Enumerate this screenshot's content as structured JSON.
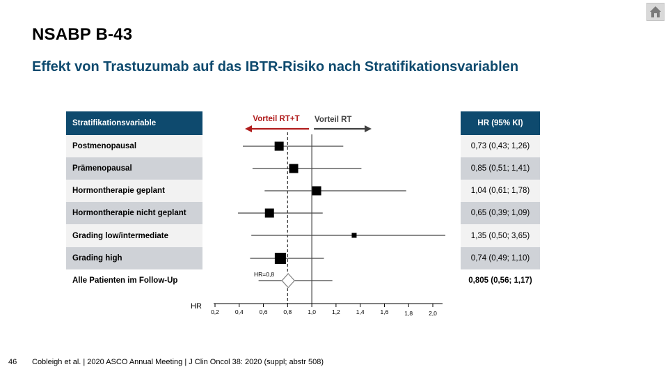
{
  "header": {
    "title": "NSABP B-43",
    "subtitle": "Effekt von Trastuzumab auf das IBTR-Risiko nach Stratifikationsvariablen"
  },
  "table": {
    "left_header": "Stratifikationsvariable",
    "right_header": "HR (95% KI)",
    "rows": [
      {
        "label": "Postmenopausal",
        "hr_text": "0,73 (0,43; 1,26)"
      },
      {
        "label": "Prämenopausal",
        "hr_text": "0,85 (0,51; 1,41)"
      },
      {
        "label": "Hormontherapie geplant",
        "hr_text": "1,04 (0,61; 1,78)"
      },
      {
        "label": "Hormontherapie nicht geplant",
        "hr_text": "0,65 (0,39; 1,09)"
      },
      {
        "label": "Grading low/intermediate",
        "hr_text": "1,35 (0,50; 3,65)"
      },
      {
        "label": "Grading high",
        "hr_text": "0,74 (0,49; 1,10)"
      },
      {
        "label": "Alle Patienten im Follow-Up",
        "hr_text": "0,805 (0,56; 1,17)"
      }
    ]
  },
  "chart_data": {
    "type": "forest",
    "xlabel": "HR",
    "ticks": [
      "0,2",
      "0,4",
      "0,6",
      "0,8",
      "1,0",
      "1,2",
      "1,4",
      "1,6",
      "1,8",
      "2,0"
    ],
    "xlim": [
      0.2,
      2.0
    ],
    "reference_line": 1.0,
    "overall_line": 0.8,
    "overall_label": "HR=0,8",
    "arrow_left_label": "Vorteil RT+T",
    "arrow_right_label": "Vorteil RT",
    "colors": {
      "left_arrow": "#b01c1c",
      "right_arrow": "#404040",
      "marker": "#000000"
    },
    "estimates": [
      {
        "hr": 0.73,
        "lo": 0.43,
        "hi": 1.26,
        "weight": "large"
      },
      {
        "hr": 0.85,
        "lo": 0.51,
        "hi": 1.41,
        "weight": "large"
      },
      {
        "hr": 1.04,
        "lo": 0.61,
        "hi": 1.78,
        "weight": "large"
      },
      {
        "hr": 0.65,
        "lo": 0.39,
        "hi": 1.09,
        "weight": "large"
      },
      {
        "hr": 1.35,
        "lo": 0.5,
        "hi": 3.65,
        "weight": "small"
      },
      {
        "hr": 0.74,
        "lo": 0.49,
        "hi": 1.1,
        "weight": "large"
      },
      {
        "hr": 0.805,
        "lo": 0.56,
        "hi": 1.17,
        "weight": "overall"
      }
    ]
  },
  "footer": {
    "page_number": "46",
    "citation": "Cobleigh et al. | 2020 ASCO Annual Meeting | J Clin Oncol 38: 2020 (suppl; abstr 508)"
  },
  "icons": {
    "home": "home-icon"
  }
}
